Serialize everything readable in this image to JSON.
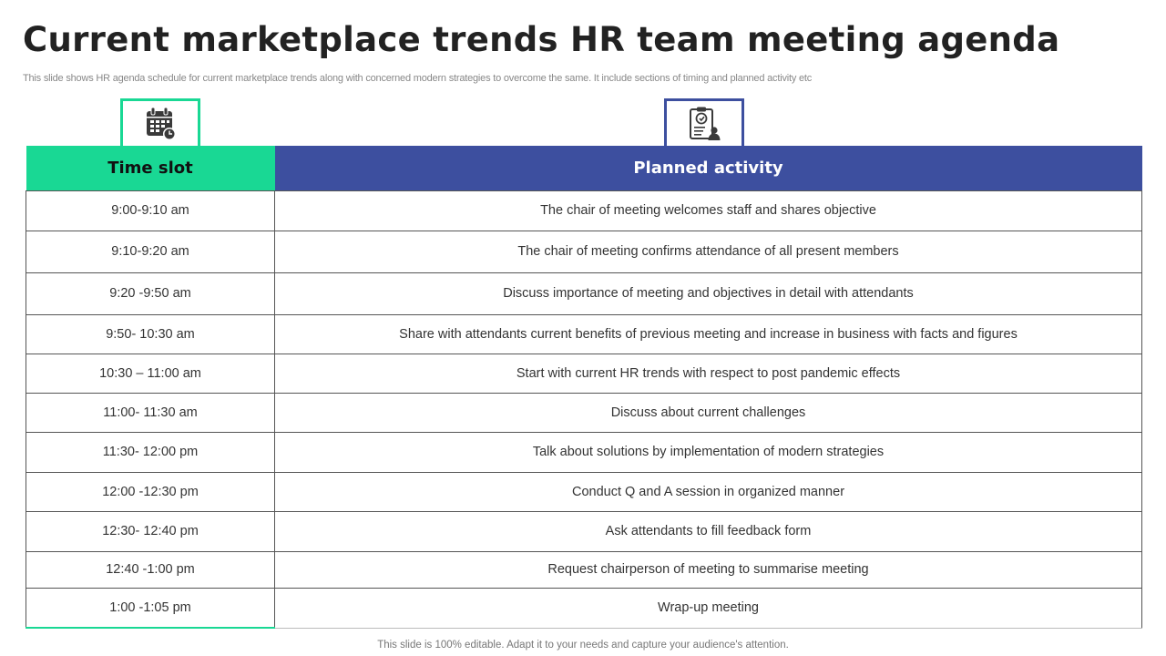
{
  "title": "Current marketplace trends HR team meeting agenda",
  "subtitle": "This slide shows HR agenda schedule for current marketplace trends along with concerned modern strategies to overcome the same. It include sections of timing and planned activity etc",
  "icons": {
    "time": "calendar-clock-icon",
    "activity": "clipboard-person-icon"
  },
  "colors": {
    "accent_green": "#19d894",
    "accent_blue": "#3d4f9f"
  },
  "table": {
    "headers": {
      "time": "Time slot",
      "activity": "Planned activity"
    },
    "rows": [
      {
        "time": "9:00-9:10 am",
        "activity": "The chair of meeting welcomes staff and shares objective"
      },
      {
        "time": "9:10-9:20 am",
        "activity": "The chair of meeting confirms attendance of all present members"
      },
      {
        "time": "9:20 -9:50 am",
        "activity": "Discuss importance of meeting and objectives in detail with attendants"
      },
      {
        "time": "9:50- 10:30 am",
        "activity": "Share with attendants current benefits of previous meeting and increase in business with facts and figures"
      },
      {
        "time": "10:30 – 11:00 am",
        "activity": "Start with current HR trends with respect to post pandemic effects"
      },
      {
        "time": "11:00- 11:30 am",
        "activity": "Discuss about current challenges"
      },
      {
        "time": "11:30- 12:00 pm",
        "activity": "Talk about solutions by implementation of modern strategies"
      },
      {
        "time": "12:00 -12:30 pm",
        "activity": "Conduct Q and A session in organized manner"
      },
      {
        "time": "12:30- 12:40 pm",
        "activity": "Ask attendants to fill feedback form"
      },
      {
        "time": "12:40 -1:00 pm",
        "activity": "Request chairperson of meeting to summarise meeting"
      },
      {
        "time": "1:00 -1:05 pm",
        "activity": "Wrap-up meeting"
      }
    ]
  },
  "footer": "This slide is 100% editable. Adapt it to your needs and capture your audience's attention."
}
